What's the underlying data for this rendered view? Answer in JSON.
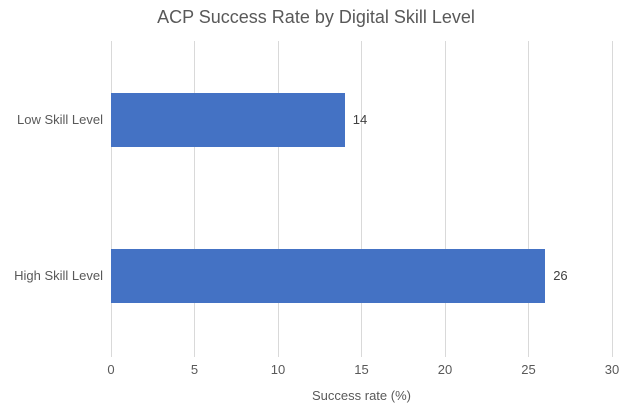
{
  "chart": {
    "bar_color": "#4472C4",
    "gridline_color": "#D9D9D9",
    "axis_text_color": "#595959",
    "data_label_color": "#404040",
    "title_color": "#595959",
    "background_color": "#FFFFFF"
  },
  "chart_data": {
    "type": "bar",
    "orientation": "horizontal",
    "title": "ACP Success Rate by Digital Skill Level",
    "categories": [
      "Low Skill Level",
      "High Skill Level"
    ],
    "values": [
      14,
      26
    ],
    "data_labels": [
      "14",
      "26"
    ],
    "xlabel": "Success rate (%)",
    "ylabel": "",
    "xlim": [
      0,
      30
    ],
    "x_ticks": [
      0,
      5,
      10,
      15,
      20,
      25,
      30
    ],
    "grid": true,
    "legend": false
  }
}
